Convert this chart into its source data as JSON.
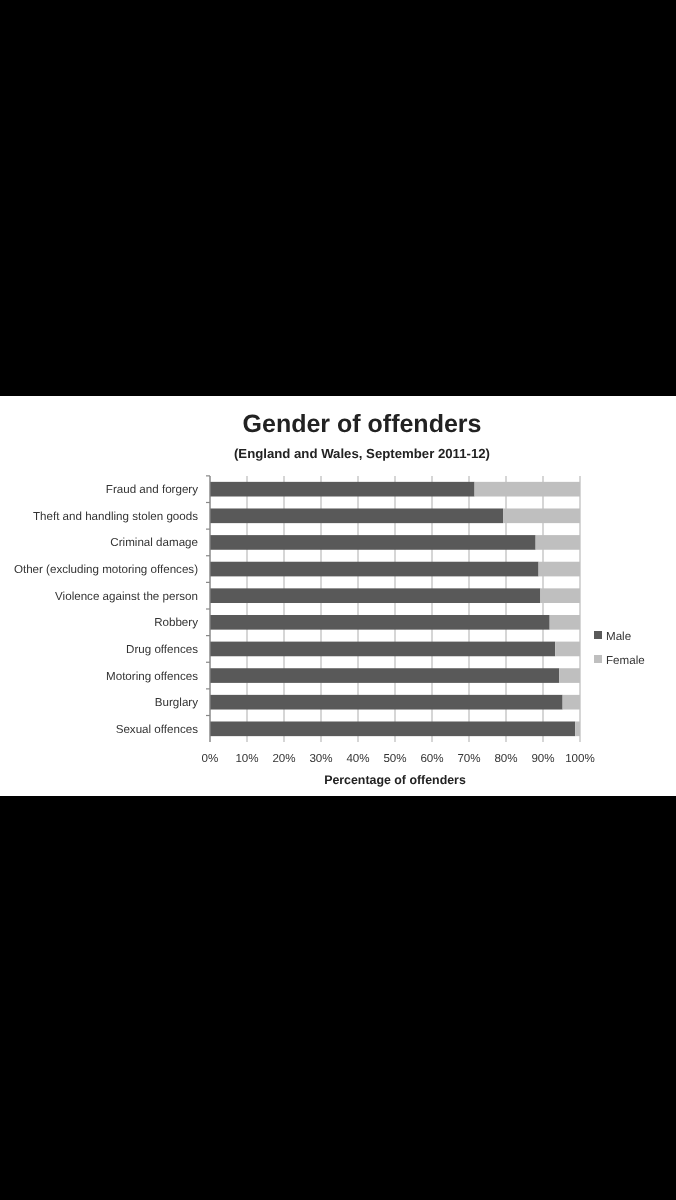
{
  "chart_data": {
    "type": "bar",
    "orientation": "horizontal",
    "stacked": true,
    "title": "Gender of offenders",
    "subtitle": "(England and Wales, September 2011-12)",
    "xlabel": "Percentage of offenders",
    "categories": [
      "Fraud and forgery",
      "Theft and handling stolen goods",
      "Criminal damage",
      "Other (excluding motoring offences)",
      "Violence against the person",
      "Robbery",
      "Drug offences",
      "Motoring offences",
      "Burglary",
      "Sexual offences"
    ],
    "series": [
      {
        "name": "Male",
        "color": "#595959",
        "values": [
          71.5,
          79.2,
          88,
          88.8,
          89.3,
          91.8,
          93.3,
          94.4,
          95.3,
          98.7
        ]
      },
      {
        "name": "Female",
        "color": "#bfbfbf",
        "values": [
          28.5,
          20.8,
          12,
          11.2,
          10.7,
          8.2,
          6.7,
          5.6,
          4.7,
          1.3
        ]
      }
    ],
    "xlim": [
      0,
      100
    ],
    "xticks": [
      {
        "value": 0,
        "label": "0%"
      },
      {
        "value": 10,
        "label": "10%"
      },
      {
        "value": 20,
        "label": "20%"
      },
      {
        "value": 30,
        "label": "30%"
      },
      {
        "value": 40,
        "label": "40%"
      },
      {
        "value": 50,
        "label": "50%"
      },
      {
        "value": 60,
        "label": "60%"
      },
      {
        "value": 70,
        "label": "70%"
      },
      {
        "value": 80,
        "label": "80%"
      },
      {
        "value": 90,
        "label": "90%"
      },
      {
        "value": 100,
        "label": "100%"
      }
    ],
    "grid": "x",
    "legend": "right"
  }
}
